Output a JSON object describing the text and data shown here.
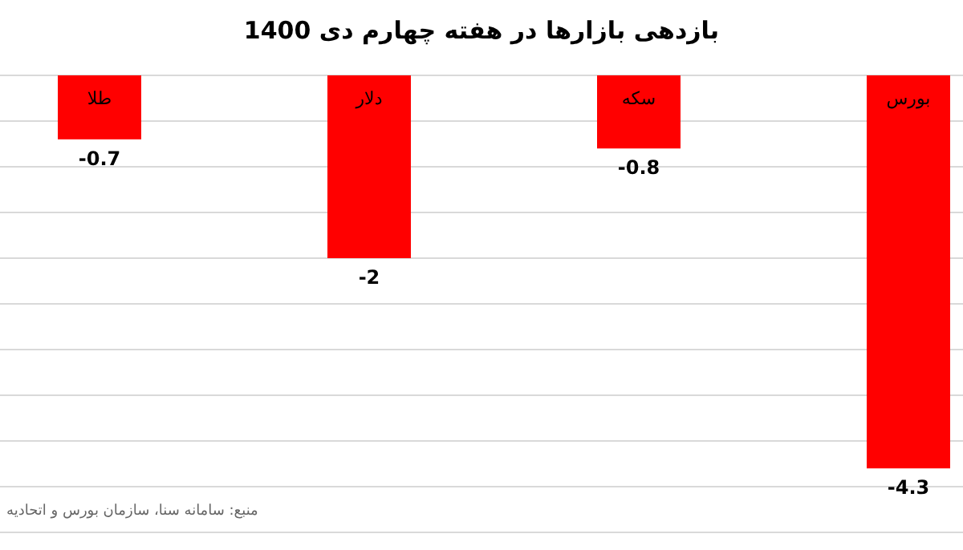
{
  "chart_data": {
    "type": "bar",
    "title": "بازدهی بازارها در هفته چهارم دی 1400",
    "categories": [
      "طلا",
      "دلار",
      "سکه",
      "بورس"
    ],
    "values": [
      -0.7,
      -2,
      -0.8,
      -4.3
    ],
    "color": "#ff0000",
    "ylim": [
      -5,
      0
    ],
    "yticks": [
      {
        "value": 0,
        "label": null
      },
      {
        "value": -0.5,
        "label": null
      },
      {
        "value": -1,
        "label": null
      },
      {
        "value": -1.5,
        "label": null
      },
      {
        "value": -2,
        "label": null
      },
      {
        "value": -2.5,
        "label": null
      },
      {
        "value": -3,
        "label": null
      },
      {
        "value": -3.5,
        "label": null
      },
      {
        "value": -4,
        "label": null
      },
      {
        "value": -4.5,
        "label": null
      },
      {
        "value": -5,
        "label": null
      }
    ],
    "grid": "y",
    "data_labels": true,
    "annotations": [
      "منبع: سامانه سنا، سازمان بورس و اتحادیه"
    ]
  }
}
